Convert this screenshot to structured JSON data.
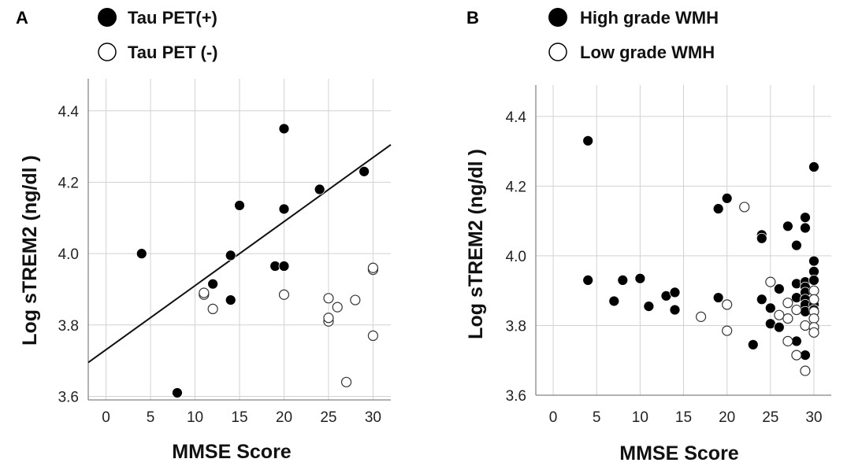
{
  "chart_data": [
    {
      "type": "scatter",
      "panel_label": "A",
      "xlabel": "MMSE Score",
      "ylabel": "Log sTREM2 (ng/dl )",
      "xlim": [
        -2,
        32
      ],
      "ylim": [
        3.59,
        4.49
      ],
      "xticks": [
        0,
        5,
        10,
        15,
        20,
        25,
        30
      ],
      "yticks": [
        3.6,
        3.8,
        4.0,
        4.2,
        4.4
      ],
      "grid": true,
      "legend": "top",
      "series": [
        {
          "name": "Tau PET(+)",
          "marker": "filled",
          "points": [
            [
              4,
              4.0
            ],
            [
              8,
              3.61
            ],
            [
              12,
              3.915
            ],
            [
              14,
              3.995
            ],
            [
              14,
              3.87
            ],
            [
              15,
              4.135
            ],
            [
              19,
              3.965
            ],
            [
              20,
              3.965
            ],
            [
              20,
              4.125
            ],
            [
              20,
              4.35
            ],
            [
              24,
              4.18
            ],
            [
              29,
              4.23
            ]
          ]
        },
        {
          "name": "Tau PET (-)",
          "marker": "open",
          "points": [
            [
              11,
              3.885
            ],
            [
              11,
              3.89
            ],
            [
              12,
              3.845
            ],
            [
              20,
              3.885
            ],
            [
              25,
              3.875
            ],
            [
              25,
              3.81
            ],
            [
              25,
              3.82
            ],
            [
              26,
              3.85
            ],
            [
              27,
              3.64
            ],
            [
              28,
              3.87
            ],
            [
              30,
              3.955
            ],
            [
              30,
              3.96
            ],
            [
              30,
              3.77
            ]
          ]
        }
      ],
      "fit_line": {
        "x": [
          -2,
          32
        ],
        "y": [
          3.695,
          4.305
        ]
      }
    },
    {
      "type": "scatter",
      "panel_label": "B",
      "xlabel": "MMSE Score",
      "ylabel": "Log sTREM2 (ng/dl )",
      "xlim": [
        -2,
        32
      ],
      "ylim": [
        3.6,
        4.49
      ],
      "xticks": [
        0,
        5,
        10,
        15,
        20,
        25,
        30
      ],
      "yticks": [
        3.6,
        3.8,
        4.0,
        4.2,
        4.4
      ],
      "grid": true,
      "legend": "top",
      "series": [
        {
          "name": "High grade WMH",
          "marker": "filled",
          "points": [
            [
              4,
              4.33
            ],
            [
              4,
              3.93
            ],
            [
              7,
              3.87
            ],
            [
              8,
              3.93
            ],
            [
              10,
              3.935
            ],
            [
              11,
              3.855
            ],
            [
              13,
              3.885
            ],
            [
              14,
              3.895
            ],
            [
              14,
              3.845
            ],
            [
              19,
              4.135
            ],
            [
              19,
              3.88
            ],
            [
              20,
              4.165
            ],
            [
              23,
              3.745
            ],
            [
              24,
              4.06
            ],
            [
              24,
              4.05
            ],
            [
              24,
              3.875
            ],
            [
              25,
              3.85
            ],
            [
              25,
              3.805
            ],
            [
              26,
              3.905
            ],
            [
              26,
              3.795
            ],
            [
              27,
              4.085
            ],
            [
              28,
              4.03
            ],
            [
              28,
              3.92
            ],
            [
              28,
              3.88
            ],
            [
              28,
              3.845
            ],
            [
              28,
              3.755
            ],
            [
              29,
              4.11
            ],
            [
              29,
              4.08
            ],
            [
              29,
              3.925
            ],
            [
              29,
              3.91
            ],
            [
              29,
              3.895
            ],
            [
              29,
              3.875
            ],
            [
              29,
              3.86
            ],
            [
              29,
              3.84
            ],
            [
              29,
              3.715
            ],
            [
              30,
              4.255
            ],
            [
              30,
              3.985
            ],
            [
              30,
              3.955
            ],
            [
              30,
              3.93
            ],
            [
              30,
              3.9
            ],
            [
              30,
              3.86
            ],
            [
              30,
              3.845
            ]
          ]
        },
        {
          "name": "Low grade WMH",
          "marker": "open",
          "points": [
            [
              17,
              3.825
            ],
            [
              20,
              3.86
            ],
            [
              20,
              3.785
            ],
            [
              22,
              4.14
            ],
            [
              25,
              3.925
            ],
            [
              26,
              3.83
            ],
            [
              27,
              3.865
            ],
            [
              27,
              3.82
            ],
            [
              27,
              3.755
            ],
            [
              28,
              3.845
            ],
            [
              28,
              3.715
            ],
            [
              29,
              3.8
            ],
            [
              29,
              3.67
            ],
            [
              30,
              3.9
            ],
            [
              30,
              3.875
            ],
            [
              30,
              3.84
            ],
            [
              30,
              3.82
            ],
            [
              30,
              3.795
            ],
            [
              30,
              3.78
            ]
          ]
        }
      ]
    }
  ]
}
